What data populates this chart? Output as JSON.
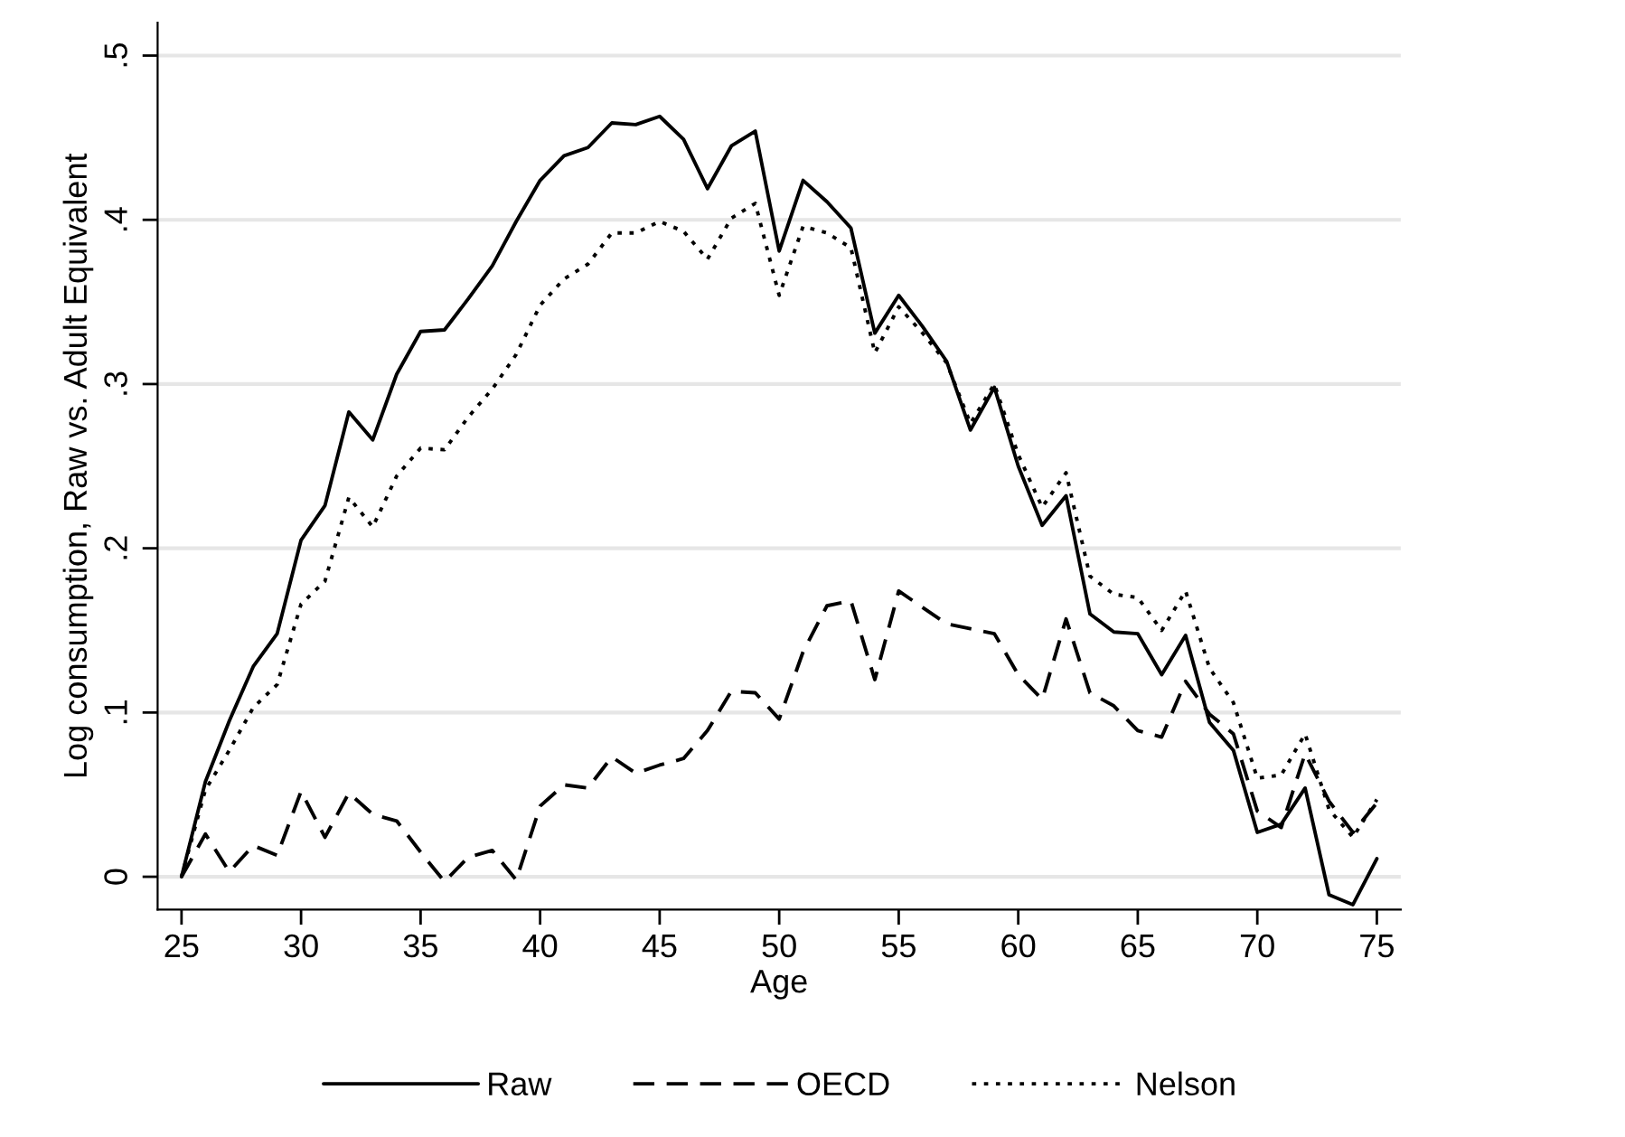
{
  "chart_data": {
    "type": "line",
    "xlabel": "Age",
    "ylabel": "Log consumption, Raw vs. Adult Equivalent",
    "x": [
      25,
      26,
      27,
      28,
      29,
      30,
      31,
      32,
      33,
      34,
      35,
      36,
      37,
      38,
      39,
      40,
      41,
      42,
      43,
      44,
      45,
      46,
      47,
      48,
      49,
      50,
      51,
      52,
      53,
      54,
      55,
      56,
      57,
      58,
      59,
      60,
      61,
      62,
      63,
      64,
      65,
      66,
      67,
      68,
      69,
      70,
      71,
      72,
      73,
      74,
      75
    ],
    "series": [
      {
        "name": "Raw",
        "color": "#000000",
        "line_style": "solid",
        "values": [
          0,
          0.058,
          0.095,
          0.128,
          0.148,
          0.205,
          0.226,
          0.283,
          0.266,
          0.306,
          0.332,
          0.333,
          0.352,
          0.372,
          0.399,
          0.424,
          0.439,
          0.444,
          0.459,
          0.458,
          0.463,
          0.449,
          0.419,
          0.445,
          0.454,
          0.381,
          0.424,
          0.411,
          0.395,
          0.331,
          0.354,
          0.335,
          0.314,
          0.272,
          0.298,
          0.25,
          0.214,
          0.232,
          0.16,
          0.149,
          0.148,
          0.123,
          0.147,
          0.094,
          0.077,
          0.027,
          0.032,
          0.054,
          -0.011,
          -0.017,
          0.011
        ]
      },
      {
        "name": "OECD",
        "color": "#000000",
        "line_style": "dashed",
        "values": [
          0,
          0.026,
          0.003,
          0.019,
          0.013,
          0.052,
          0.024,
          0.051,
          0.038,
          0.034,
          0.015,
          -0.003,
          0.012,
          0.016,
          -0.002,
          0.043,
          0.056,
          0.054,
          0.073,
          0.063,
          0.068,
          0.072,
          0.089,
          0.113,
          0.112,
          0.096,
          0.137,
          0.165,
          0.168,
          0.12,
          0.174,
          0.164,
          0.154,
          0.151,
          0.148,
          0.123,
          0.108,
          0.157,
          0.112,
          0.104,
          0.089,
          0.085,
          0.119,
          0.099,
          0.087,
          0.04,
          0.03,
          0.075,
          0.046,
          0.027,
          0.045
        ]
      },
      {
        "name": "Nelson",
        "color": "#000000",
        "line_style": "dotted",
        "values": [
          0,
          0.053,
          0.077,
          0.103,
          0.117,
          0.166,
          0.18,
          0.231,
          0.213,
          0.244,
          0.261,
          0.26,
          0.28,
          0.297,
          0.318,
          0.348,
          0.364,
          0.373,
          0.392,
          0.392,
          0.399,
          0.393,
          0.376,
          0.401,
          0.41,
          0.354,
          0.396,
          0.392,
          0.383,
          0.319,
          0.347,
          0.331,
          0.313,
          0.276,
          0.3,
          0.257,
          0.225,
          0.246,
          0.183,
          0.172,
          0.17,
          0.15,
          0.174,
          0.127,
          0.106,
          0.06,
          0.062,
          0.087,
          0.041,
          0.024,
          0.047
        ]
      }
    ],
    "xlim": [
      24,
      76
    ],
    "xticks": [
      25,
      30,
      35,
      40,
      45,
      50,
      55,
      60,
      65,
      70,
      75
    ],
    "ylim": [
      -0.02,
      0.52
    ],
    "yticks": [
      {
        "value": 0,
        "label": "0"
      },
      {
        "value": 0.1,
        "label": ".1"
      },
      {
        "value": 0.2,
        "label": ".2"
      },
      {
        "value": 0.3,
        "label": ".3"
      },
      {
        "value": 0.4,
        "label": ".4"
      },
      {
        "value": 0.5,
        "label": ".5"
      }
    ],
    "grid": "y",
    "legend": "bottom",
    "marker": "none"
  }
}
